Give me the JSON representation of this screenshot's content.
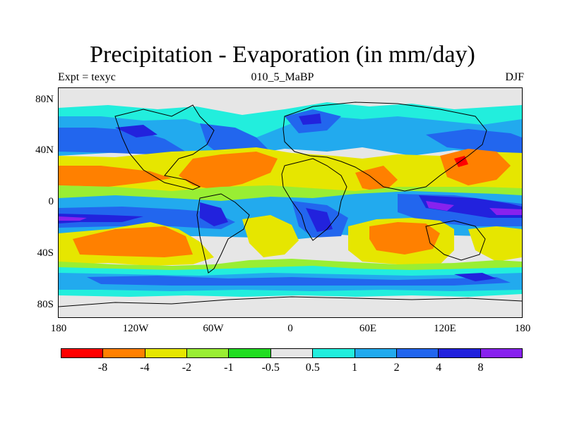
{
  "title": "Precipitation - Evaporation (in mm/day)",
  "subtitle_left": "Expt = texyc",
  "subtitle_center": "010_5_MaBP",
  "subtitle_right": "DJF",
  "y_ticks": [
    "80N",
    "40N",
    "0",
    "40S",
    "80S"
  ],
  "x_ticks": [
    "180",
    "120W",
    "60W",
    "0",
    "60E",
    "120E",
    "180"
  ],
  "colorbar": {
    "colors": [
      "#ff0000",
      "#ff8000",
      "#e6e600",
      "#99ee33",
      "#22dd22",
      "#e6e6e6",
      "#22eedd",
      "#22aaee",
      "#2266ee",
      "#2222dd",
      "#8822ee"
    ],
    "labels": [
      "-8",
      "-4",
      "-2",
      "-1",
      "-0.5",
      "0.5",
      "1",
      "2",
      "4",
      "8"
    ]
  }
}
